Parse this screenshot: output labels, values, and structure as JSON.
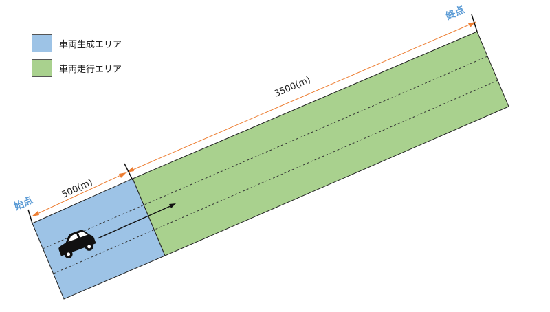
{
  "legend": {
    "items": [
      {
        "label": "車両生成エリア",
        "color": "#9DC3E6"
      },
      {
        "label": "車両走行エリア",
        "color": "#A9D18E"
      }
    ]
  },
  "labels": {
    "start": "始点",
    "end": "終点",
    "generation_length": "500(m)",
    "driving_length": "3500(m)"
  },
  "colors": {
    "generation_fill": "#9DC3E6",
    "driving_fill": "#A9D18E",
    "dimension_line": "#ED7D31",
    "point_label": "#5B9BD5",
    "outline": "#222222"
  },
  "icons": {
    "vehicle": "car-icon",
    "direction": "arrow-right-icon"
  }
}
